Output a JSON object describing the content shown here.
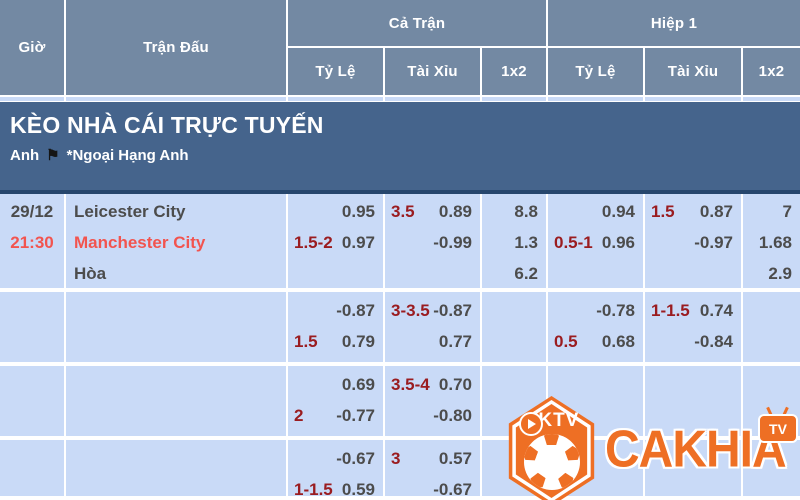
{
  "header": {
    "time": "Giờ",
    "match": "Trận Đấu",
    "full_time": "Cả Trận",
    "half_time": "Hiệp 1",
    "odds": "Tỷ Lệ",
    "over_under": "Tài Xỉu",
    "one_x_two": "1x2"
  },
  "banner": {
    "title": "KÈO NHÀ CÁI TRỰC TUYẾN",
    "country": "Anh",
    "flag_icon": "black-flag",
    "league": "*Ngoại Hạng Anh"
  },
  "rows": [
    {
      "date": "29/12",
      "time": "21:30",
      "teams": [
        "Leicester City",
        "Manchester City",
        "Hòa"
      ],
      "ft_odds": [
        {
          "hc": "",
          "val": "0.95"
        },
        {
          "hc": "1.5-2",
          "val": "0.97"
        }
      ],
      "ft_ou": [
        {
          "hc": "3.5",
          "val": "0.89"
        },
        {
          "hc": "",
          "val": "-0.99"
        }
      ],
      "ft_1x2": [
        "8.8",
        "1.3",
        "6.2"
      ],
      "h1_odds": [
        {
          "hc": "",
          "val": "0.94"
        },
        {
          "hc": "0.5-1",
          "val": "0.96"
        }
      ],
      "h1_ou": [
        {
          "hc": "1.5",
          "val": "0.87"
        },
        {
          "hc": "",
          "val": "-0.97"
        }
      ],
      "h1_1x2": [
        "7",
        "1.68",
        "2.9"
      ]
    },
    {
      "ft_odds": [
        {
          "hc": "",
          "val": "-0.87"
        },
        {
          "hc": "1.5",
          "val": "0.79"
        }
      ],
      "ft_ou": [
        {
          "hc": "3-3.5",
          "val": "-0.87"
        },
        {
          "hc": "",
          "val": "0.77"
        }
      ],
      "h1_odds": [
        {
          "hc": "",
          "val": "-0.78"
        },
        {
          "hc": "0.5",
          "val": "0.68"
        }
      ],
      "h1_ou": [
        {
          "hc": "1-1.5",
          "val": "0.74"
        },
        {
          "hc": "",
          "val": "-0.84"
        }
      ]
    },
    {
      "ft_odds": [
        {
          "hc": "",
          "val": "0.69"
        },
        {
          "hc": "2",
          "val": "-0.77"
        }
      ],
      "ft_ou": [
        {
          "hc": "3.5-4",
          "val": "0.70"
        },
        {
          "hc": "",
          "val": "-0.80"
        }
      ]
    },
    {
      "ft_odds": [
        {
          "hc": "",
          "val": "-0.67"
        },
        {
          "hc": "1-1.5",
          "val": "0.59"
        }
      ],
      "ft_ou": [
        {
          "hc": "3",
          "val": "0.57"
        },
        {
          "hc": "",
          "val": "-0.67"
        }
      ]
    }
  ],
  "watermark": {
    "badge": "CKTV",
    "brand": "CAKHIA",
    "tv": "TV"
  },
  "colors": {
    "header_blue": "#7389a3",
    "banner_blue": "#45648c",
    "banner_border": "#26466d",
    "row_blue": "#c9daf7",
    "handicap_maroon": "#9a1c20",
    "live_red": "#f2544f",
    "text_gray": "#4c4c4c",
    "accent_orange": "#ee6f24"
  }
}
